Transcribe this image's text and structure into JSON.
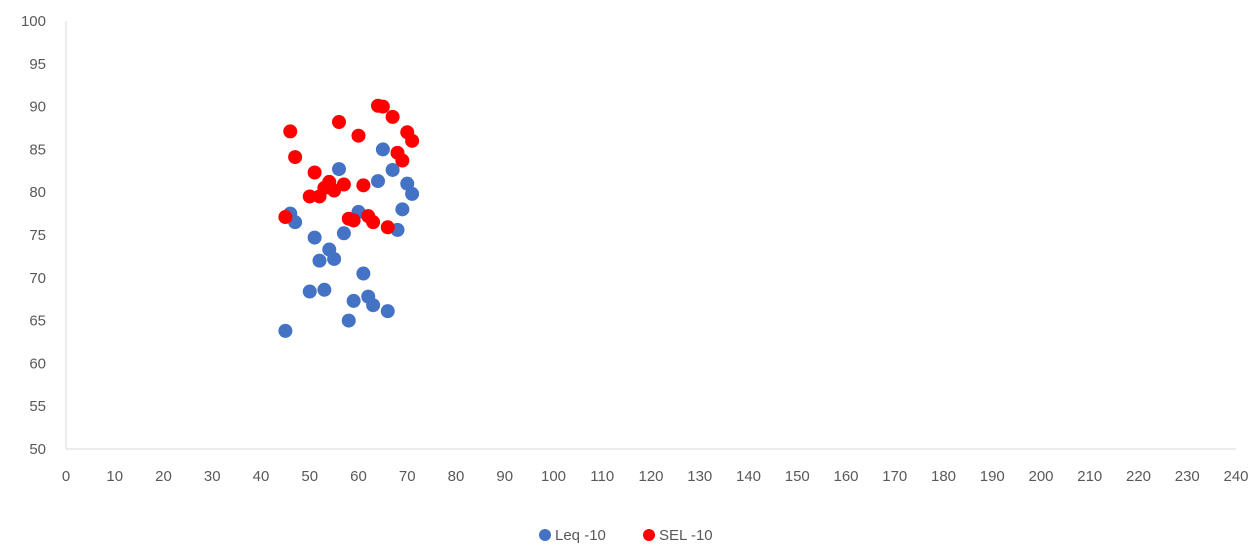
{
  "chart_data": {
    "type": "scatter",
    "title": "",
    "xlabel": "",
    "ylabel": "",
    "xlim": [
      0,
      240
    ],
    "ylim": [
      50,
      100
    ],
    "xticks": [
      0,
      10,
      20,
      30,
      40,
      50,
      60,
      70,
      80,
      90,
      100,
      110,
      120,
      130,
      140,
      150,
      160,
      170,
      180,
      190,
      200,
      210,
      220,
      230,
      240
    ],
    "yticks": [
      50,
      55,
      60,
      65,
      70,
      75,
      80,
      85,
      90,
      95,
      100
    ],
    "grid": false,
    "legend_position": "bottom",
    "series": [
      {
        "name": "Leq -10",
        "color": "#4472C4",
        "points": [
          [
            45,
            63.8
          ],
          [
            46,
            77.5
          ],
          [
            47,
            76.5
          ],
          [
            50,
            68.4
          ],
          [
            51,
            74.7
          ],
          [
            52,
            72.0
          ],
          [
            53,
            68.6
          ],
          [
            54,
            73.3
          ],
          [
            55,
            72.2
          ],
          [
            56,
            82.7
          ],
          [
            57,
            75.2
          ],
          [
            58,
            65.0
          ],
          [
            59,
            67.3
          ],
          [
            60,
            77.7
          ],
          [
            61,
            70.5
          ],
          [
            62,
            67.8
          ],
          [
            63,
            66.8
          ],
          [
            64,
            81.3
          ],
          [
            65,
            85.0
          ],
          [
            66,
            66.1
          ],
          [
            67,
            82.6
          ],
          [
            68,
            75.6
          ],
          [
            69,
            78.0
          ],
          [
            70,
            81.0
          ],
          [
            71,
            79.8
          ]
        ]
      },
      {
        "name": "SEL -10",
        "color": "#FF0000",
        "points": [
          [
            45,
            77.1
          ],
          [
            46,
            87.1
          ],
          [
            47,
            84.1
          ],
          [
            50,
            79.5
          ],
          [
            51,
            82.3
          ],
          [
            52,
            79.5
          ],
          [
            53,
            80.5
          ],
          [
            54,
            81.2
          ],
          [
            55,
            80.2
          ],
          [
            56,
            88.2
          ],
          [
            57,
            80.9
          ],
          [
            58,
            76.9
          ],
          [
            59,
            76.7
          ],
          [
            60,
            86.6
          ],
          [
            61,
            80.8
          ],
          [
            62,
            77.2
          ],
          [
            63,
            76.5
          ],
          [
            64,
            90.1
          ],
          [
            65,
            90.0
          ],
          [
            66,
            75.9
          ],
          [
            67,
            88.8
          ],
          [
            68,
            84.6
          ],
          [
            69,
            83.7
          ],
          [
            70,
            87.0
          ],
          [
            71,
            86.0
          ]
        ]
      }
    ]
  }
}
